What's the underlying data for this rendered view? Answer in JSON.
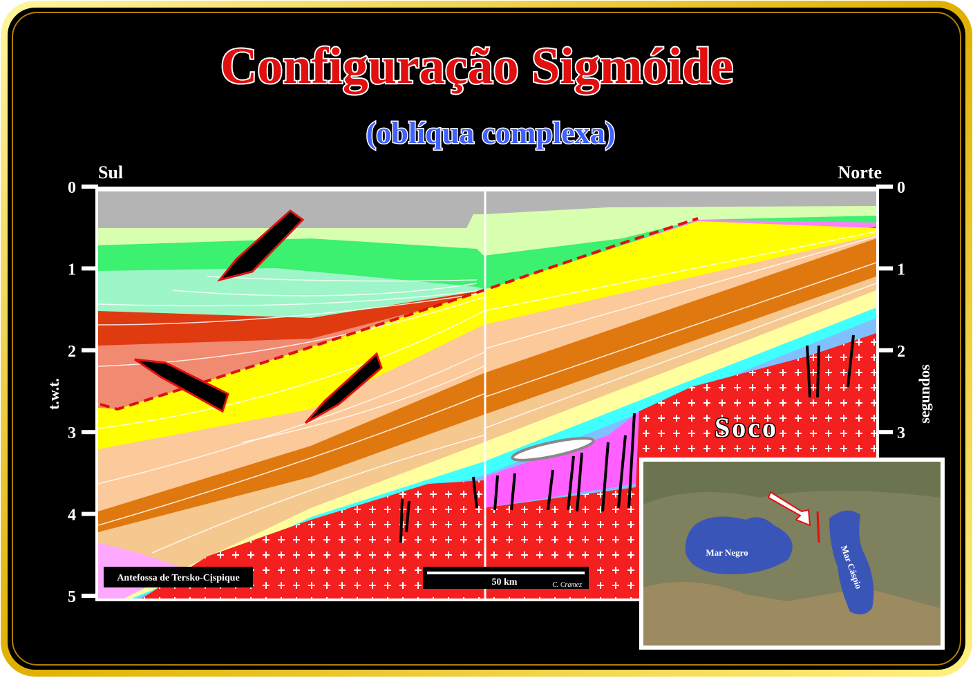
{
  "header": {
    "title": "Configuração Sigmóide",
    "subtitle": "(oblíqua complexa)"
  },
  "section": {
    "left_label": "Sul",
    "right_label": "Norte",
    "left_axis": {
      "label": "t.w.t.",
      "ticks": [
        0,
        1,
        2,
        3,
        4,
        5
      ]
    },
    "right_axis": {
      "label": "segundos",
      "ticks": [
        0,
        1,
        2,
        3
      ]
    },
    "basement_label": "Soco",
    "caption": "Antefossa de Tersko-Cįspique",
    "scale_bar": "50 km",
    "credit": "C. Cramez"
  },
  "map": {
    "labels": [
      "Mar Negro",
      "Mar Cáspio"
    ]
  }
}
